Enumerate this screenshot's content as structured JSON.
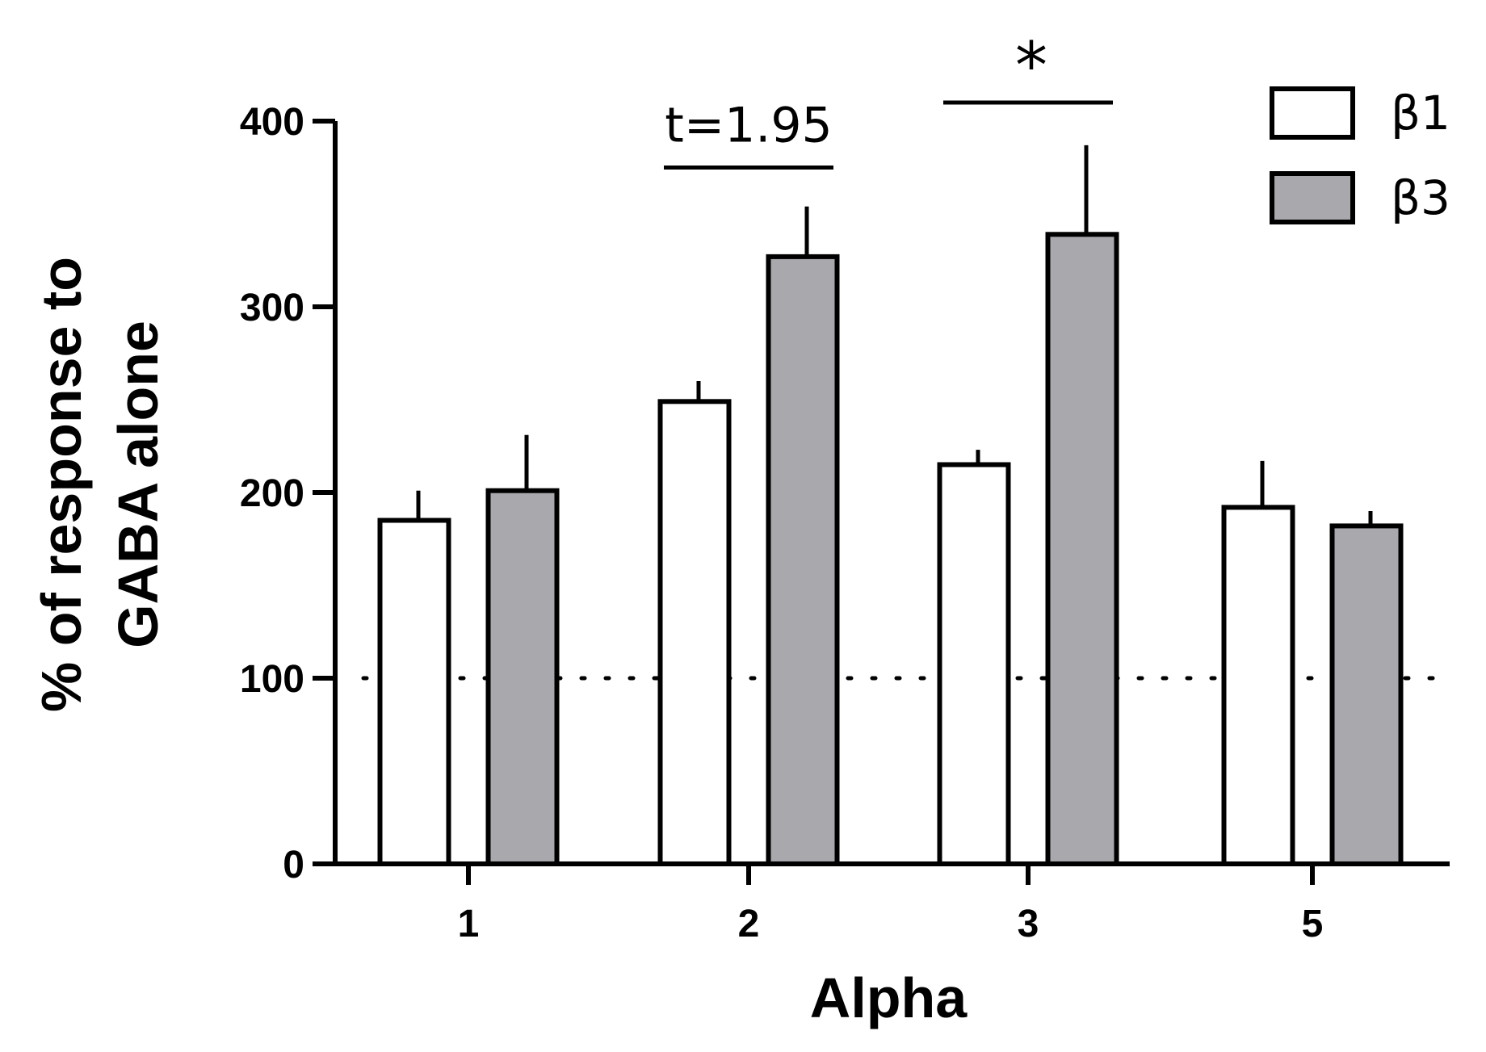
{
  "chart_data": {
    "type": "bar",
    "xlabel": "Alpha",
    "ylabel": [
      "% of response to",
      "GABA alone"
    ],
    "categories": [
      "1",
      "2",
      "3",
      "5"
    ],
    "ylim": [
      0,
      400
    ],
    "yticks": [
      0,
      100,
      200,
      300,
      400
    ],
    "grid": false,
    "legend_position": "top-right",
    "reference_line": {
      "value": 100,
      "style": "dotted"
    },
    "series": [
      {
        "name": "β1",
        "color": "#ffffff",
        "values": [
          185,
          249,
          215,
          192
        ],
        "errors": [
          16,
          11,
          8,
          25
        ]
      },
      {
        "name": "β3",
        "color": "#a8a8ad",
        "values": [
          201,
          327,
          339,
          182
        ],
        "errors": [
          30,
          27,
          48,
          8
        ]
      }
    ],
    "annotations": [
      {
        "text": "t=1.95",
        "category": "2",
        "y": 375
      },
      {
        "text": "*",
        "category": "3",
        "y": 410
      }
    ]
  }
}
